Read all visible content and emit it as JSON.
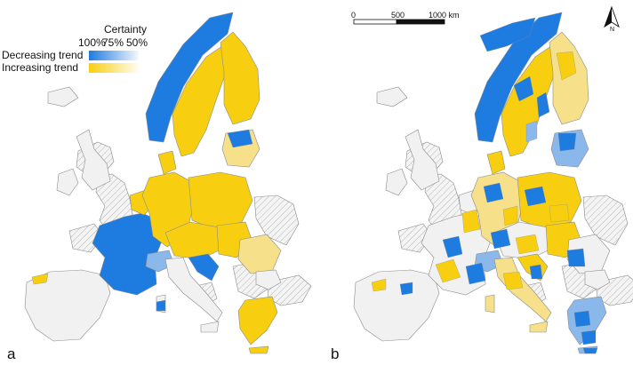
{
  "panels": [
    {
      "letter": "a"
    },
    {
      "letter": "b"
    }
  ],
  "legend": {
    "title": "Certainty",
    "levels": [
      "100%",
      "75%",
      "50%"
    ],
    "entries": [
      {
        "label": "Decreasing trend",
        "color": "#1e7be0"
      },
      {
        "label": "Increasing trend",
        "color": "#f7cf10"
      }
    ]
  },
  "scalebar": {
    "ticks": [
      "0",
      "500",
      "1000 km"
    ]
  },
  "north_arrow": {
    "label": "N",
    "icon": "north-arrow-icon"
  },
  "colors": {
    "decreasing": "#1e7be0",
    "decreasing_light": "#8ab8ea",
    "increasing": "#f7cf10",
    "increasing_light": "#f6e08a",
    "no_data": "#f1f1f1",
    "outside": "#ffffff",
    "hatch": "#b5b5b5"
  }
}
